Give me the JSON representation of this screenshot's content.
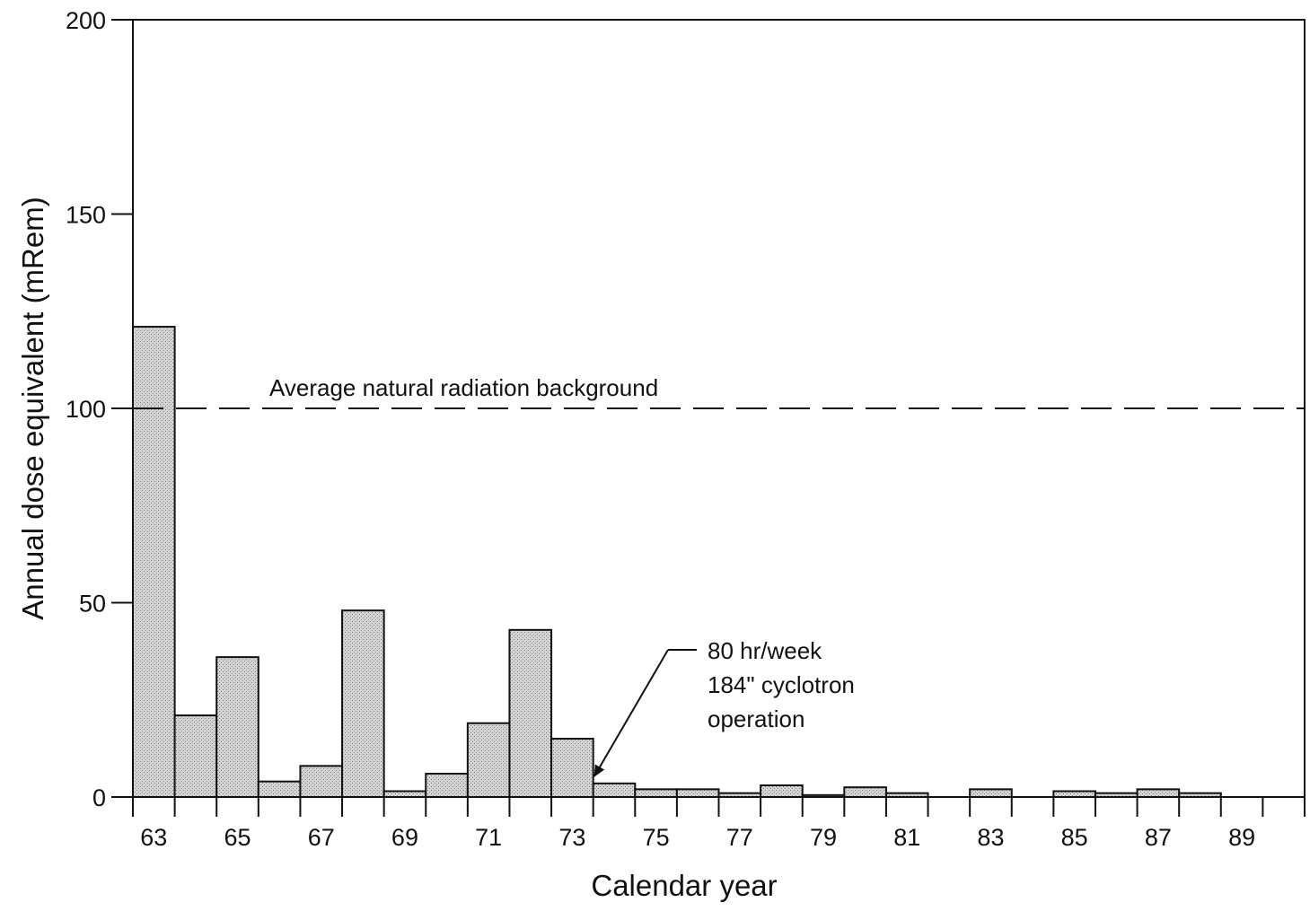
{
  "chart_data": {
    "type": "bar",
    "xlabel": "Calendar year",
    "ylabel": "Annual dose equivalent (mRem)",
    "ylim": [
      0,
      200
    ],
    "yticks": [
      0,
      50,
      100,
      150,
      200
    ],
    "xlim": [
      62.5,
      90.5
    ],
    "x_tick_labels": [
      "63",
      "65",
      "67",
      "69",
      "71",
      "73",
      "75",
      "77",
      "79",
      "81",
      "83",
      "85",
      "87",
      "89"
    ],
    "x": [
      63,
      64,
      65,
      66,
      67,
      68,
      69,
      70,
      71,
      72,
      73,
      74,
      75,
      76,
      77,
      78,
      79,
      80,
      81,
      82,
      83,
      84,
      85,
      86,
      87,
      88,
      89,
      90
    ],
    "values": [
      121,
      21,
      36,
      4,
      8,
      48,
      1.5,
      6,
      19,
      43,
      15,
      3.5,
      2,
      2,
      1,
      3,
      0.5,
      2.5,
      1,
      0,
      2,
      0,
      1.5,
      1,
      2,
      1,
      0,
      0
    ],
    "reference_line": {
      "value": 100,
      "label": "Average natural radiation background",
      "style": "dashed"
    },
    "annotations": [
      {
        "lines": [
          "80 hr/week",
          "184\" cyclotron",
          "operation"
        ],
        "points_to": {
          "x": 74,
          "y": 3.5
        }
      }
    ],
    "bar_fill": "#cfcfcf",
    "grid": false
  }
}
